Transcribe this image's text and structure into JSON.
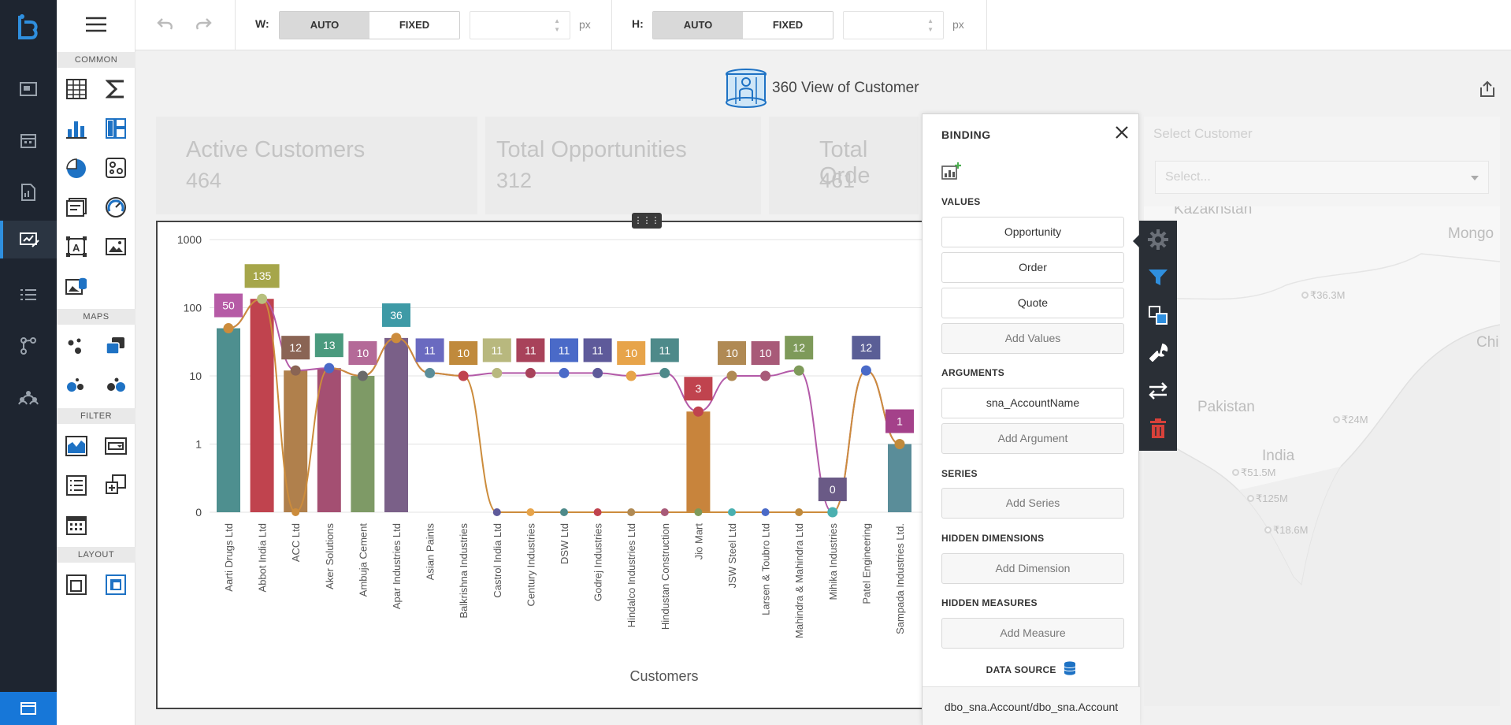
{
  "toolbar": {
    "width_label": "W:",
    "height_label": "H:",
    "auto_label": "AUTO",
    "fixed_label": "FIXED",
    "unit": "px",
    "width_mode": "AUTO",
    "height_mode": "AUTO",
    "width_value": "",
    "height_value": ""
  },
  "palette": {
    "sections": [
      "COMMON",
      "MAPS",
      "FILTER",
      "LAYOUT"
    ]
  },
  "dashboard": {
    "title": "360 View of Customer",
    "kpis": [
      {
        "label": "Active Customers",
        "value": "464"
      },
      {
        "label": "Total Opportunities",
        "value": "312"
      },
      {
        "label": "Total Orde",
        "value": "461"
      }
    ],
    "customer_filter": {
      "label": "Select Customer",
      "placeholder": "Select..."
    },
    "map": {
      "labels": [
        "Kazakhstan",
        "Mongo",
        "Chi",
        "Pakistan",
        "India"
      ],
      "values": [
        "₹36.3M",
        "₹24M",
        "₹51.5M",
        "₹125M",
        "₹18.6M"
      ]
    }
  },
  "binding": {
    "header": "BINDING",
    "values_title": "VALUES",
    "values": [
      "Opportunity",
      "Order",
      "Quote"
    ],
    "add_values": "Add Values",
    "arguments_title": "ARGUMENTS",
    "arguments": [
      "sna_AccountName"
    ],
    "add_argument": "Add Argument",
    "series_title": "SERIES",
    "add_series": "Add Series",
    "hidden_dimensions_title": "HIDDEN DIMENSIONS",
    "add_dimension": "Add Dimension",
    "hidden_measures_title": "HIDDEN MEASURES",
    "add_measure": "Add Measure",
    "data_source_title": "DATA SOURCE",
    "data_source": "dbo_sna.Account/dbo_sna.Account"
  },
  "colors": {
    "rail": "#1e2530",
    "accent": "#1777d8",
    "opportunity_line": "#b35aa8",
    "order_line": "#cc8c3c",
    "delete": "#d9413a"
  },
  "chart_data": {
    "type": "bar",
    "xlabel": "Customers",
    "ylabel": "",
    "yscale": "log",
    "yticks": [
      "1000",
      "100",
      "10",
      "1",
      "0"
    ],
    "grid": true,
    "categories": [
      "Aarti Drugs Ltd",
      "Abbot India Ltd",
      "ACC Ltd",
      "Aker Solutions",
      "Ambuja Cement",
      "Apar Industries Ltd",
      "Asian Paints",
      "Balkrishna Industries",
      "Castrol India Ltd",
      "Century Industries",
      "DSW Ltd",
      "Godrej Industries",
      "Hindalco Industries Ltd",
      "Hindustan Construction",
      "Jio Mart",
      "JSW Steel Ltd",
      "Larsen & Toubro Ltd",
      "Mahindra & Mahindra Ltd",
      "Mihika Industries",
      "Patel Engineering",
      "Sampada Industries Ltd."
    ],
    "bar_colors": [
      "#4e8f8f",
      "#c0434e",
      "#b0804c",
      "#a44f72",
      "#7e9a66",
      "#7a6088",
      "#c08a3c",
      "#c08a3c",
      "#c08a3c",
      "#c08a3c",
      "#c08a3c",
      "#c08a3c",
      "#c08a3c",
      "#c08a3c",
      "#c8843c",
      "#c08a3c",
      "#c08a3c",
      "#c08a3c",
      "#c08a3c",
      "#c08a3c",
      "#5a8d99"
    ],
    "label_colors": [
      "#b65ba6",
      "#a6a64a",
      "#8a6454",
      "#4a9a7e",
      "#b46a98",
      "#3e9aa6",
      "#6a6ac0",
      "#c08a3c",
      "#b8b87e",
      "#a8425a",
      "#4a6ac8",
      "#5e5a9a",
      "#e7a44a",
      "#4e8a8a",
      "#c0434e",
      "#b08a54",
      "#a85a78",
      "#7e9a5a",
      "#6a5a86",
      "#5a5e96",
      "#a4418a"
    ],
    "series": [
      {
        "name": "Opportunity",
        "values": [
          50,
          135,
          12,
          13,
          10,
          36,
          11,
          10,
          11,
          11,
          11,
          11,
          10,
          11,
          3,
          10,
          10,
          12,
          0,
          12,
          1
        ]
      },
      {
        "name": "Order",
        "values": [
          50,
          135,
          0,
          13,
          10,
          36,
          11,
          10,
          0,
          0,
          0,
          0,
          0,
          0,
          0,
          0,
          0,
          0,
          0,
          12,
          1
        ]
      }
    ],
    "data_labels": [
      50,
      135,
      12,
      13,
      10,
      36,
      11,
      10,
      11,
      11,
      11,
      11,
      10,
      11,
      3,
      10,
      10,
      12,
      0,
      12,
      1
    ]
  }
}
